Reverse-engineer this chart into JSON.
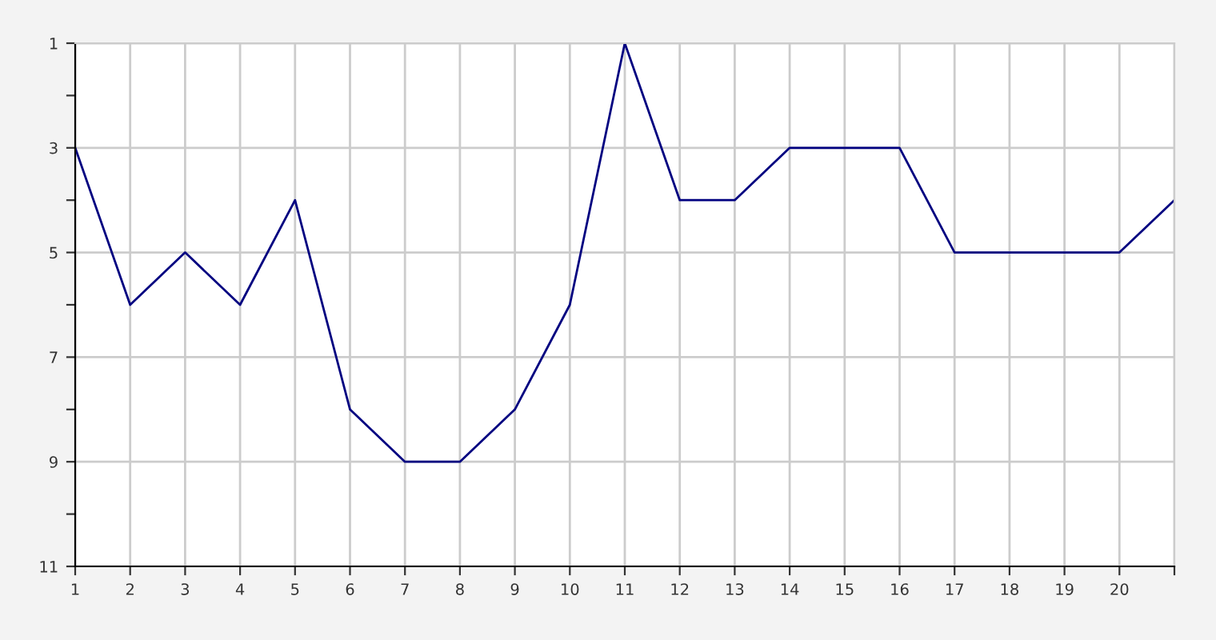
{
  "chart_data": {
    "type": "line",
    "x": [
      1,
      2,
      3,
      4,
      5,
      6,
      7,
      8,
      9,
      10,
      11,
      12,
      13,
      14,
      15,
      16,
      17,
      18,
      19,
      20,
      21
    ],
    "series": [
      {
        "color": "#000080",
        "values": [
          3,
          6,
          5,
          6,
          4,
          8,
          9,
          9,
          8,
          6,
          1,
          4,
          4,
          3,
          3,
          3,
          5,
          5,
          5,
          5,
          4
        ]
      }
    ],
    "xlim": [
      1,
      21
    ],
    "xticks": [
      1,
      2,
      3,
      4,
      5,
      6,
      7,
      8,
      9,
      10,
      11,
      12,
      13,
      14,
      15,
      16,
      17,
      18,
      19,
      20,
      {
        "value": 21,
        "label": null
      }
    ],
    "ylim": [
      11,
      1
    ],
    "yticks": [
      1,
      {
        "value": 2,
        "label": null
      },
      3,
      {
        "value": 4,
        "label": null
      },
      5,
      {
        "value": 6,
        "label": null
      },
      7,
      {
        "value": 8,
        "label": null
      },
      9,
      {
        "value": 10,
        "label": null
      },
      11
    ],
    "grid": true,
    "marker": "none",
    "line_style": "solid"
  }
}
